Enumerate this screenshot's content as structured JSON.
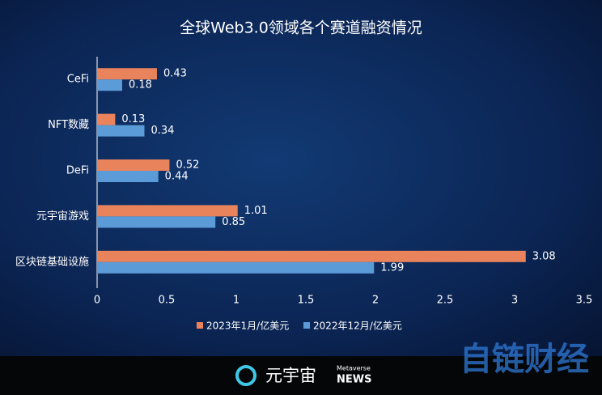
{
  "chart_data": {
    "type": "hbar",
    "title": "全球Web3.0领域各个赛道融资情况",
    "categories": [
      "CeFi",
      "NFT数藏",
      "DeFi",
      "元宇宙游戏",
      "区块链基础设施"
    ],
    "series": [
      {
        "name": "2023年1月/亿美元",
        "color": "#e9835b",
        "values": [
          0.43,
          0.13,
          0.52,
          1.01,
          3.08
        ]
      },
      {
        "name": "2022年12月/亿美元",
        "color": "#5b9bd8",
        "values": [
          0.18,
          0.34,
          0.44,
          0.85,
          1.99
        ]
      }
    ],
    "xlim": [
      0,
      3.5
    ],
    "xticks": [
      0,
      0.5,
      1,
      1.5,
      2,
      2.5,
      3,
      3.5
    ],
    "legend": "bottom"
  },
  "footer": {
    "brand": "元宇宙",
    "brand_sub": "Metaverse",
    "brand_news": "NEWS",
    "watermark": "自链财经"
  }
}
